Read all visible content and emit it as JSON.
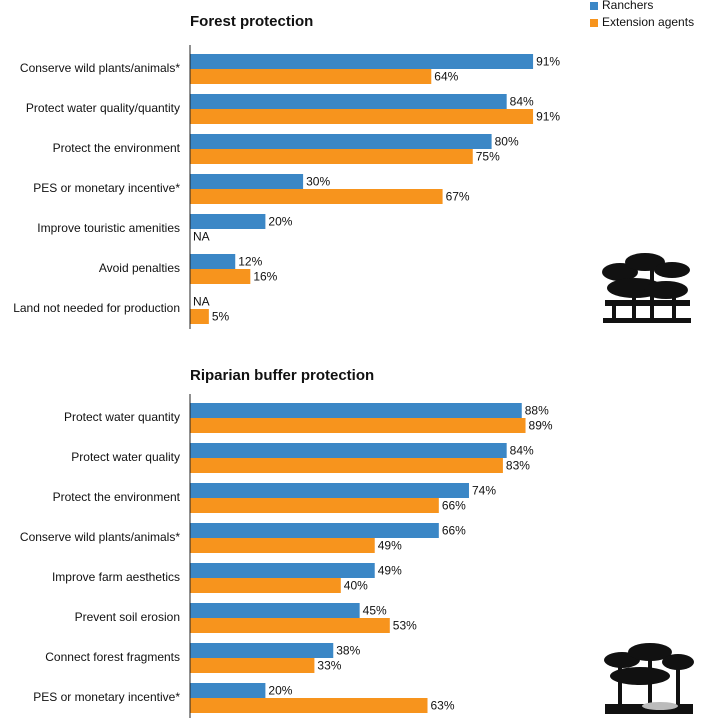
{
  "chart_data": [
    {
      "type": "bar",
      "orientation": "horizontal",
      "title": "Forest protection",
      "categories": [
        "Conserve wild plants/animals*",
        "Protect water quality/quantity",
        "Protect the environment",
        "PES or monetary incentive*",
        "Improve touristic amenities",
        "Avoid penalties",
        "Land not needed for production"
      ],
      "series": [
        {
          "name": "Ranchers",
          "color": "#3b87c6",
          "values": [
            91,
            84,
            80,
            30,
            20,
            12,
            null
          ],
          "value_labels": [
            "91%",
            "84%",
            "80%",
            "30%",
            "20%",
            "12%",
            "NA"
          ]
        },
        {
          "name": "Extension agents",
          "color": "#f7941d",
          "values": [
            64,
            91,
            75,
            67,
            null,
            16,
            5
          ],
          "value_labels": [
            "64%",
            "91%",
            "75%",
            "67%",
            "NA",
            "16%",
            "5%"
          ]
        }
      ],
      "xlim": [
        0,
        100
      ]
    },
    {
      "type": "bar",
      "orientation": "horizontal",
      "title": "Riparian buffer protection",
      "categories": [
        "Protect water quantity",
        "Protect water quality",
        "Protect the environment",
        "Conserve wild plants/animals*",
        "Improve farm aesthetics",
        "Prevent soil erosion",
        "Connect forest fragments",
        "PES or monetary incentive*"
      ],
      "series": [
        {
          "name": "Ranchers",
          "color": "#3b87c6",
          "values": [
            88,
            84,
            74,
            66,
            49,
            45,
            38,
            20
          ],
          "value_labels": [
            "88%",
            "84%",
            "74%",
            "66%",
            "49%",
            "45%",
            "38%",
            "20%"
          ]
        },
        {
          "name": "Extension agents",
          "color": "#f7941d",
          "values": [
            89,
            83,
            66,
            49,
            40,
            53,
            33,
            63
          ],
          "value_labels": [
            "89%",
            "83%",
            "66%",
            "49%",
            "40%",
            "53%",
            "33%",
            "63%"
          ]
        }
      ],
      "xlim": [
        0,
        100
      ]
    }
  ]
}
